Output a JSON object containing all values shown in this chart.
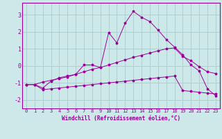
{
  "x_values": [
    0,
    1,
    2,
    3,
    4,
    5,
    6,
    7,
    8,
    9,
    10,
    11,
    12,
    13,
    14,
    15,
    16,
    17,
    18,
    19,
    20,
    21,
    22,
    23
  ],
  "main_line": [
    -1.1,
    -1.1,
    -1.3,
    -0.9,
    -0.7,
    -0.6,
    -0.5,
    0.05,
    0.05,
    -0.1,
    1.95,
    1.35,
    2.5,
    3.2,
    2.85,
    2.6,
    2.1,
    1.55,
    1.1,
    0.65,
    0.05,
    -0.3,
    -1.35,
    -1.75
  ],
  "upper_line": [
    -1.1,
    -1.1,
    -0.95,
    -0.85,
    -0.75,
    -0.65,
    -0.5,
    -0.35,
    -0.2,
    -0.1,
    0.05,
    0.2,
    0.35,
    0.5,
    0.62,
    0.75,
    0.88,
    1.0,
    1.05,
    0.55,
    0.3,
    -0.05,
    -0.35,
    -0.45
  ],
  "lower_line": [
    -1.1,
    -1.1,
    -1.4,
    -1.35,
    -1.3,
    -1.25,
    -1.2,
    -1.15,
    -1.1,
    -1.05,
    -1.0,
    -0.95,
    -0.9,
    -0.85,
    -0.8,
    -0.75,
    -0.7,
    -0.65,
    -0.6,
    -1.45,
    -1.5,
    -1.55,
    -1.6,
    -1.65
  ],
  "bg_color": "#cce8e8",
  "line_color": "#990099",
  "grid_color": "#aacccc",
  "xlabel": "Windchill (Refroidissement éolien,°C)",
  "xlabel_fontsize": 5.5,
  "tick_fontsize": 5,
  "ylabel_ticks": [
    -2,
    -1,
    0,
    1,
    2,
    3
  ],
  "xlim": [
    -0.5,
    23.5
  ],
  "ylim": [
    -2.5,
    3.7
  ]
}
